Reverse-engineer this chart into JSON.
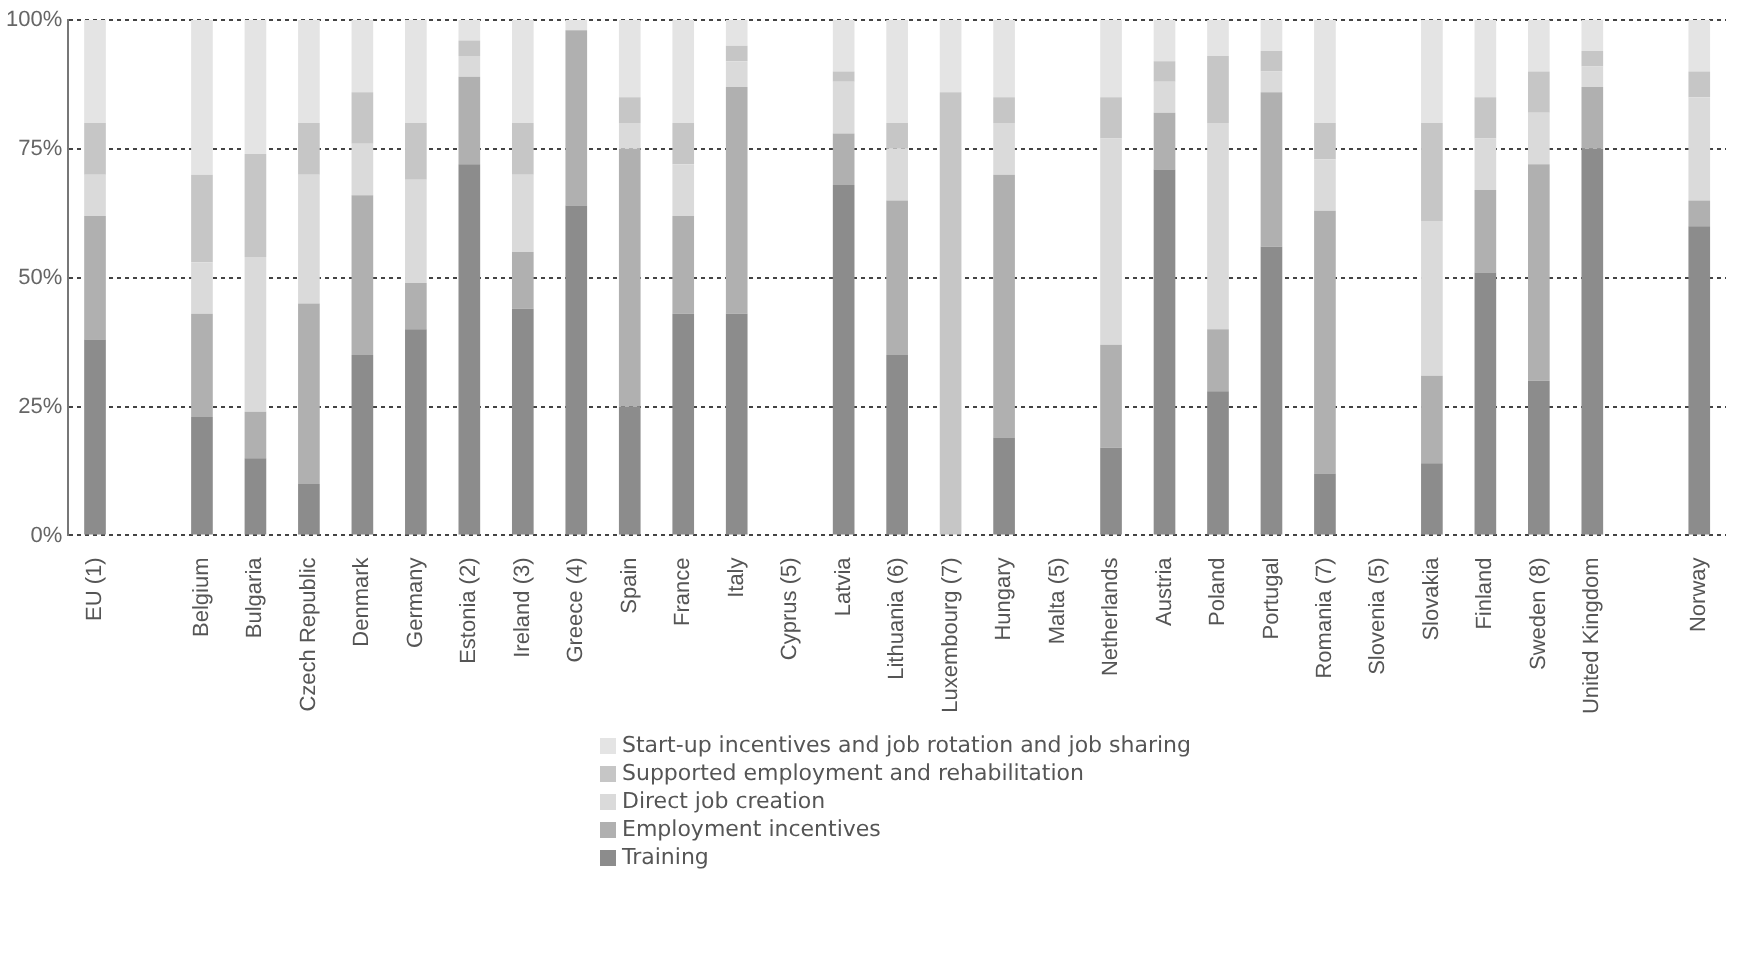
{
  "chart_data": {
    "type": "bar",
    "stacked": true,
    "categories": [
      "EU (1)",
      null,
      "Belgium",
      "Bulgaria",
      "Czech Republic",
      "Denmark",
      "Germany",
      "Estonia (2)",
      "Ireland (3)",
      "Greece (4)",
      "Spain",
      "France",
      "Italy",
      "Cyprus (5)",
      "Latvia",
      "Lithuania (6)",
      "Luxembourg (7)",
      "Hungary",
      "Malta (5)",
      "Netherlands",
      "Austria",
      "Poland",
      "Portugal",
      "Romania (7)",
      "Slovenia (5)",
      "Slovakia",
      "Finland",
      "Sweden (8)",
      "United Kingdom",
      null,
      "Norway"
    ],
    "series": [
      {
        "name": "Training",
        "color": "#8c8c8c",
        "values": [
          38,
          null,
          23,
          15,
          10,
          35,
          40,
          72,
          44,
          64,
          25,
          43,
          43,
          null,
          68,
          35,
          0,
          19,
          null,
          17,
          71,
          28,
          56,
          12,
          null,
          14,
          51,
          30,
          75,
          null,
          60
        ]
      },
      {
        "name": "Employment incentives",
        "color": "#b0b0b0",
        "values": [
          24,
          null,
          20,
          9,
          35,
          31,
          9,
          17,
          11,
          34,
          50,
          19,
          44,
          null,
          10,
          30,
          0,
          51,
          null,
          20,
          11,
          12,
          30,
          51,
          null,
          17,
          16,
          42,
          12,
          null,
          5
        ]
      },
      {
        "name": "Direct job creation",
        "color": "#dadada",
        "values": [
          8,
          null,
          10,
          30,
          25,
          10,
          20,
          4,
          15,
          0,
          5,
          10,
          5,
          null,
          10,
          10,
          0,
          10,
          null,
          40,
          6,
          40,
          4,
          10,
          null,
          30,
          10,
          10,
          4,
          null,
          20
        ]
      },
      {
        "name": "Supported employment and rehabilitation",
        "color": "#c6c6c6",
        "values": [
          10,
          null,
          17,
          20,
          10,
          10,
          11,
          3,
          10,
          0,
          5,
          8,
          3,
          null,
          2,
          5,
          86,
          5,
          null,
          8,
          4,
          13,
          4,
          7,
          null,
          19,
          8,
          8,
          3,
          null,
          5
        ]
      },
      {
        "name": "Start-up incentives and job rotation and job sharing",
        "color": "#e4e4e4",
        "values": [
          20,
          null,
          30,
          26,
          20,
          14,
          20,
          4,
          20,
          2,
          15,
          20,
          5,
          null,
          10,
          20,
          14,
          15,
          null,
          15,
          8,
          7,
          6,
          20,
          null,
          20,
          15,
          10,
          6,
          null,
          10
        ]
      }
    ],
    "ylim": [
      0,
      100
    ],
    "yticks": [
      {
        "value": 0,
        "label": "0%"
      },
      {
        "value": 25,
        "label": "25%"
      },
      {
        "value": 50,
        "label": "50%"
      },
      {
        "value": 75,
        "label": "75%"
      },
      {
        "value": 100,
        "label": "100%"
      }
    ],
    "grid": "y",
    "legend": "bottom"
  }
}
